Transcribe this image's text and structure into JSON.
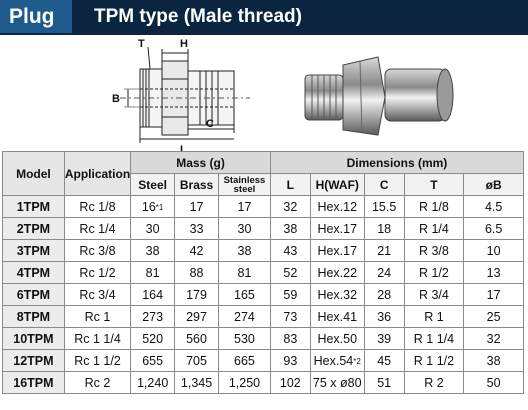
{
  "header": {
    "badge": "Plug",
    "title": "TPM type (Male thread)"
  },
  "figure": {
    "dim_labels": [
      "T",
      "H",
      "B",
      "C",
      "L"
    ]
  },
  "table": {
    "col_model": "Model",
    "col_application": "Application",
    "group_mass": "Mass (g)",
    "group_dimensions": "Dimensions (mm)",
    "mass_cols": [
      "Steel",
      "Brass",
      "Stainless steel"
    ],
    "dim_cols": [
      "L",
      "H(WAF)",
      "C",
      "T",
      "øB"
    ],
    "rows": [
      {
        "model": "1TPM",
        "app": "Rc 1/8",
        "steel": "16",
        "steel_note": "*1",
        "brass": "17",
        "stainless": "17",
        "L": "32",
        "H": "Hex.12",
        "H_note": "",
        "C": "15.5",
        "T": "R 1/8",
        "B": "4.5"
      },
      {
        "model": "2TPM",
        "app": "Rc 1/4",
        "steel": "30",
        "steel_note": "",
        "brass": "33",
        "stainless": "30",
        "L": "38",
        "H": "Hex.17",
        "H_note": "",
        "C": "18",
        "T": "R 1/4",
        "B": "6.5"
      },
      {
        "model": "3TPM",
        "app": "Rc 3/8",
        "steel": "38",
        "steel_note": "",
        "brass": "42",
        "stainless": "38",
        "L": "43",
        "H": "Hex.17",
        "H_note": "",
        "C": "21",
        "T": "R 3/8",
        "B": "10"
      },
      {
        "model": "4TPM",
        "app": "Rc 1/2",
        "steel": "81",
        "steel_note": "",
        "brass": "88",
        "stainless": "81",
        "L": "52",
        "H": "Hex.22",
        "H_note": "",
        "C": "24",
        "T": "R 1/2",
        "B": "13"
      },
      {
        "model": "6TPM",
        "app": "Rc 3/4",
        "steel": "164",
        "steel_note": "",
        "brass": "179",
        "stainless": "165",
        "L": "59",
        "H": "Hex.32",
        "H_note": "",
        "C": "28",
        "T": "R 3/4",
        "B": "17"
      },
      {
        "model": "8TPM",
        "app": "Rc 1",
        "steel": "273",
        "steel_note": "",
        "brass": "297",
        "stainless": "274",
        "L": "73",
        "H": "Hex.41",
        "H_note": "",
        "C": "36",
        "T": "R 1",
        "B": "25"
      },
      {
        "model": "10TPM",
        "app": "Rc 1 1/4",
        "steel": "520",
        "steel_note": "",
        "brass": "560",
        "stainless": "530",
        "L": "83",
        "H": "Hex.50",
        "H_note": "",
        "C": "39",
        "T": "R 1 1/4",
        "B": "32"
      },
      {
        "model": "12TPM",
        "app": "Rc 1 1/2",
        "steel": "655",
        "steel_note": "",
        "brass": "705",
        "stainless": "665",
        "L": "93",
        "H": "Hex.54",
        "H_note": "*2",
        "C": "45",
        "T": "R 1 1/2",
        "B": "38"
      },
      {
        "model": "16TPM",
        "app": "Rc 2",
        "steel": "1,240",
        "steel_note": "",
        "brass": "1,345",
        "stainless": "1,250",
        "L": "102",
        "H": "75 x ø80",
        "H_note": "",
        "C": "51",
        "T": "R 2",
        "B": "50"
      }
    ]
  }
}
